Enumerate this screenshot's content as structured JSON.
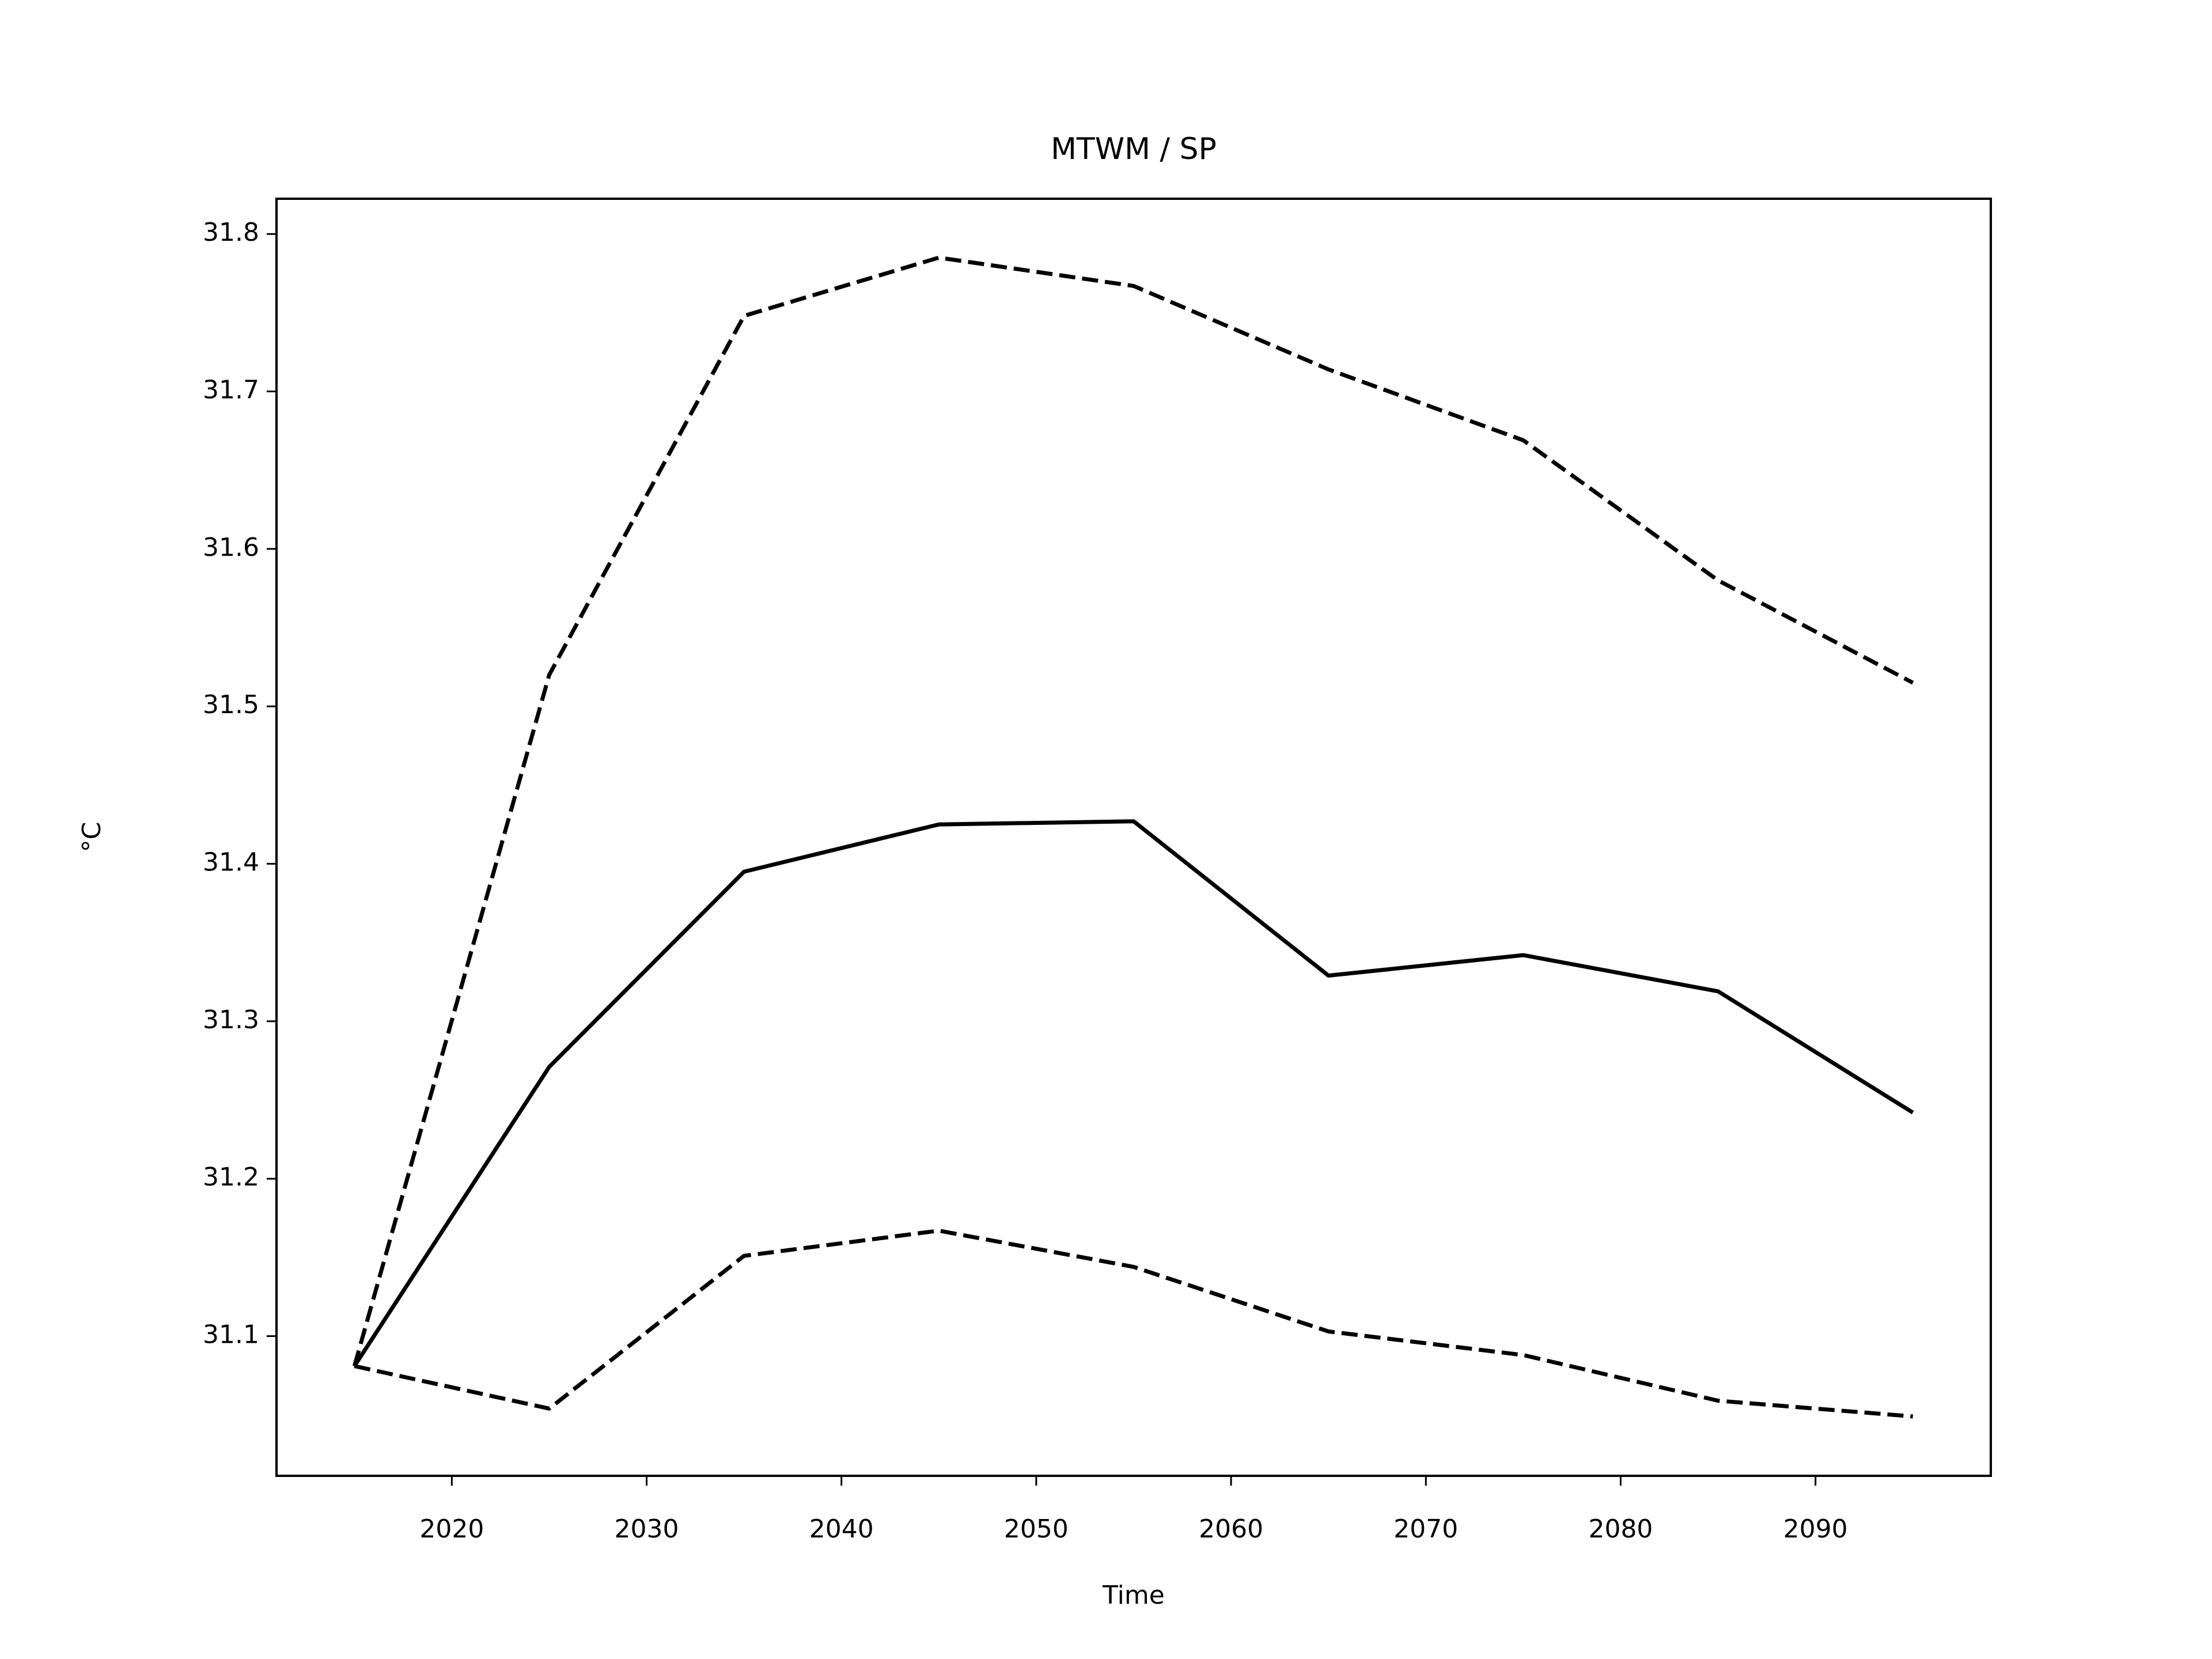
{
  "chart_data": {
    "type": "line",
    "title": "MTWM / SP",
    "x_label": "Time",
    "y_label": "°C",
    "x": [
      2015,
      2025,
      2035,
      2045,
      2055,
      2065,
      2075,
      2085,
      2095
    ],
    "series": [
      {
        "color": "#000000",
        "dash": "solid",
        "values": [
          31.081,
          31.271,
          31.395,
          31.425,
          31.427,
          31.329,
          31.342,
          31.319,
          31.242
        ]
      },
      {
        "color": "#000000",
        "dash": "dashed",
        "values": [
          31.081,
          31.52,
          31.748,
          31.785,
          31.767,
          31.714,
          31.669,
          31.58,
          31.515
        ]
      },
      {
        "color": "#000000",
        "dash": "dashed",
        "values": [
          31.081,
          31.054,
          31.151,
          31.167,
          31.144,
          31.103,
          31.088,
          31.059,
          31.049
        ]
      }
    ],
    "xlim": [
      2011,
      2099
    ],
    "xticks": [
      2020,
      2030,
      2040,
      2050,
      2060,
      2070,
      2080,
      2090
    ],
    "ylim": [
      31.0113,
      31.8224
    ],
    "yticks": [
      31.1,
      31.2,
      31.3,
      31.4,
      31.5,
      31.6,
      31.7,
      31.8
    ],
    "grid": false
  }
}
